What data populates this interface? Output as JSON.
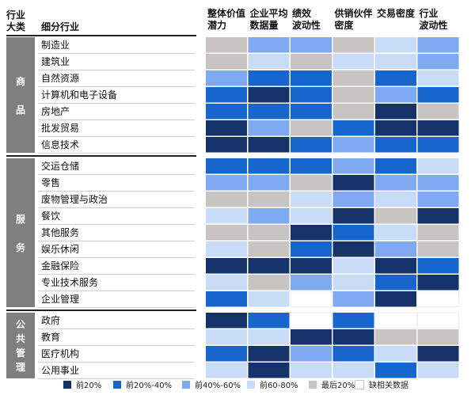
{
  "header": {
    "col_industry_category": "行业\n大类",
    "col_sub_industry": "细分行业"
  },
  "chart_data": {
    "type": "heatmap",
    "columns": [
      "整体价值\n潜力",
      "企业平均\n数据量",
      "绩效\n波动性",
      "供销伙伴\n密度",
      "交易密度",
      "行业\n波动性"
    ],
    "groups": [
      {
        "label": "商\n\n品",
        "start": 0,
        "end": 6
      },
      {
        "label": "服\n\n务",
        "start": 7,
        "end": 15
      },
      {
        "label": "公\n共\n管\n理",
        "start": 16,
        "end": 19
      }
    ],
    "rows": [
      "制造业",
      "建筑业",
      "自然资源",
      "计算机和电子设备",
      "房地产",
      "批发贸易",
      "信息技术",
      "交运仓储",
      "零售",
      "废物管理与政治",
      "餐饮",
      "其他服务",
      "娱乐休闲",
      "金融保险",
      "专业技术服务",
      "企业管理",
      "政府",
      "教育",
      "医疗机构",
      "公用事业"
    ],
    "levels": [
      "top20",
      "20-40",
      "40-60",
      "60-80",
      "bottom20",
      "none"
    ],
    "values": [
      [
        "bottom20",
        "40-60",
        "40-60",
        "bottom20",
        "60-80",
        "40-60"
      ],
      [
        "bottom20",
        "60-80",
        "bottom20",
        "60-80",
        "60-80",
        "40-60"
      ],
      [
        "40-60",
        "20-40",
        "20-40",
        "bottom20",
        "20-40",
        "60-80"
      ],
      [
        "20-40",
        "top20",
        "20-40",
        "bottom20",
        "40-60",
        "20-40"
      ],
      [
        "20-40",
        "20-40",
        "20-40",
        "bottom20",
        "top20",
        "bottom20"
      ],
      [
        "top20",
        "40-60",
        "bottom20",
        "20-40",
        "top20",
        "top20"
      ],
      [
        "top20",
        "top20",
        "20-40",
        "40-60",
        "20-40",
        "20-40"
      ],
      [
        "20-40",
        "20-40",
        "20-40",
        "40-60",
        "20-40",
        "60-80"
      ],
      [
        "40-60",
        "40-60",
        "bottom20",
        "top20",
        "40-60",
        "40-60"
      ],
      [
        "bottom20",
        "bottom20",
        "60-80",
        "40-60",
        "60-80",
        "40-60"
      ],
      [
        "60-80",
        "40-60",
        "60-80",
        "top20",
        "bottom20",
        "top20"
      ],
      [
        "bottom20",
        "bottom20",
        "top20",
        "20-40",
        "60-80",
        "bottom20"
      ],
      [
        "60-80",
        "bottom20",
        "20-40",
        "top20",
        "40-60",
        "bottom20"
      ],
      [
        "top20",
        "top20",
        "top20",
        "60-80",
        "top20",
        "20-40"
      ],
      [
        "60-80",
        "bottom20",
        "40-60",
        "60-80",
        "20-40",
        "top20"
      ],
      [
        "20-40",
        "60-80",
        "none",
        "40-60",
        "top20",
        "none"
      ],
      [
        "top20",
        "20-40",
        "none",
        "20-40",
        "none",
        "none"
      ],
      [
        "60-80",
        "60-80",
        "top20",
        "top20",
        "bottom20",
        "bottom20"
      ],
      [
        "20-40",
        "top20",
        "40-60",
        "20-40",
        "60-80",
        "top20"
      ],
      [
        "60-80",
        "top20",
        "60-80",
        "60-80",
        "20-40",
        "60-80"
      ]
    ],
    "colors": {
      "top20": "#15326b",
      "20-40": "#1666cc",
      "40-60": "#7faaf2",
      "60-80": "#c8dcf8",
      "bottom20": "#c8c4c2",
      "none": "#ffffff"
    },
    "legend": [
      {
        "key": "top20",
        "label": "前20%"
      },
      {
        "key": "20-40",
        "label": "前20%-40%"
      },
      {
        "key": "40-60",
        "label": "前40%-60%"
      },
      {
        "key": "60-80",
        "label": "前60-80%"
      },
      {
        "key": "bottom20",
        "label": "最后20%"
      },
      {
        "key": "none",
        "label": "缺相关数据"
      }
    ]
  }
}
